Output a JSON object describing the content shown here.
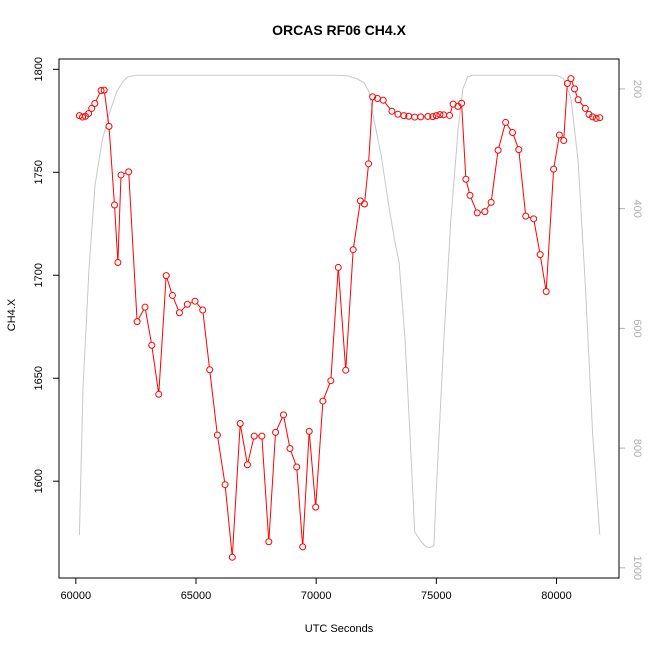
{
  "chart_data": {
    "type": "line",
    "title": "ORCAS RF06 CH4.X",
    "xlabel": "UTC Seconds",
    "ylabel": "CH4.X",
    "xlim": [
      59300,
      82600
    ],
    "ylim": [
      1553,
      1805
    ],
    "y2lim": [
      1017,
      150
    ],
    "x_ticks": [
      60000,
      65000,
      70000,
      75000,
      80000
    ],
    "y_ticks": [
      1600,
      1650,
      1700,
      1750,
      1800
    ],
    "y2_ticks": [
      200,
      400,
      600,
      800,
      1000
    ],
    "grid": false,
    "legend": "none",
    "series": [
      {
        "color": "#ff0000",
        "marker": "open-circle",
        "x": [
          60150,
          60280,
          60400,
          60530,
          60660,
          60790,
          61050,
          61180,
          61380,
          61610,
          61750,
          61880,
          62200,
          62550,
          62880,
          63160,
          63450,
          63760,
          64020,
          64310,
          64640,
          64960,
          65280,
          65570,
          65890,
          66210,
          66510,
          66840,
          67140,
          67420,
          67740,
          68030,
          68310,
          68640,
          68910,
          69190,
          69440,
          69710,
          69980,
          70280,
          70610,
          70920,
          71230,
          71540,
          71840,
          72010,
          72180,
          72350,
          72550,
          72790,
          73150,
          73400,
          73650,
          73850,
          74100,
          74350,
          74650,
          74850,
          75000,
          75150,
          75300,
          75550,
          75700,
          75900,
          76050,
          76230,
          76400,
          76700,
          77020,
          77280,
          77570,
          77880,
          78170,
          78430,
          78720,
          79050,
          79320,
          79570,
          79880,
          80120,
          80300,
          80450,
          80600,
          80750,
          80900,
          81200,
          81350,
          81500,
          81650,
          81800
        ],
        "y": [
          1777.5,
          1776.8,
          1777.2,
          1778.5,
          1781.0,
          1783.4,
          1789.7,
          1789.9,
          1772.3,
          1734.1,
          1706.2,
          1748.7,
          1750.2,
          1677.5,
          1684.5,
          1666.0,
          1642.2,
          1699.8,
          1690.2,
          1681.8,
          1685.9,
          1687.4,
          1683.1,
          1654.1,
          1622.4,
          1598.3,
          1563.1,
          1628.0,
          1608.0,
          1621.9,
          1621.9,
          1570.6,
          1623.7,
          1632.2,
          1615.9,
          1606.9,
          1568.1,
          1624.2,
          1587.4,
          1638.9,
          1648.8,
          1703.8,
          1653.9,
          1712.4,
          1736.1,
          1734.6,
          1754.1,
          1786.6,
          1785.8,
          1785.0,
          1779.6,
          1778.2,
          1777.5,
          1777.2,
          1776.8,
          1776.9,
          1777.1,
          1777.0,
          1777.5,
          1778.0,
          1777.9,
          1777.6,
          1783.1,
          1782.0,
          1783.5,
          1746.6,
          1738.8,
          1730.3,
          1730.9,
          1735.4,
          1760.7,
          1774.2,
          1769.3,
          1761.0,
          1728.7,
          1727.4,
          1710.0,
          1692.1,
          1751.5,
          1768.1,
          1765.4,
          1793.1,
          1795.5,
          1790.5,
          1785.2,
          1781.0,
          1778.1,
          1776.9,
          1776.2,
          1776.5
        ]
      },
      {
        "color": "#c8c8c8",
        "axis": "right",
        "x": [
          60150,
          60300,
          60550,
          60800,
          61100,
          61400,
          61700,
          61950,
          62150,
          62500,
          63000,
          64000,
          65000,
          66000,
          67000,
          68000,
          69000,
          70000,
          71000,
          71300,
          71700,
          72000,
          72200,
          72400,
          72700,
          73000,
          73250,
          73450,
          73700,
          73900,
          74100,
          74350,
          74500,
          74600,
          74700,
          74800,
          74900,
          75000,
          75300,
          75600,
          75900,
          76100,
          76300,
          76500,
          77000,
          78000,
          79000,
          80000,
          80300,
          80600,
          80900,
          81200,
          81500,
          81800
        ],
        "y": [
          945,
          700,
          500,
          360,
          285,
          240,
          205,
          188,
          180,
          177,
          177,
          177,
          177,
          177,
          177,
          177,
          177,
          177,
          177,
          178,
          183,
          190,
          205,
          250,
          310,
          390,
          450,
          490,
          620,
          775,
          940,
          955,
          962,
          965,
          966,
          965,
          963,
          870,
          630,
          420,
          270,
          200,
          180,
          177,
          177,
          177,
          177,
          177,
          183,
          215,
          320,
          530,
          775,
          945
        ]
      }
    ]
  }
}
